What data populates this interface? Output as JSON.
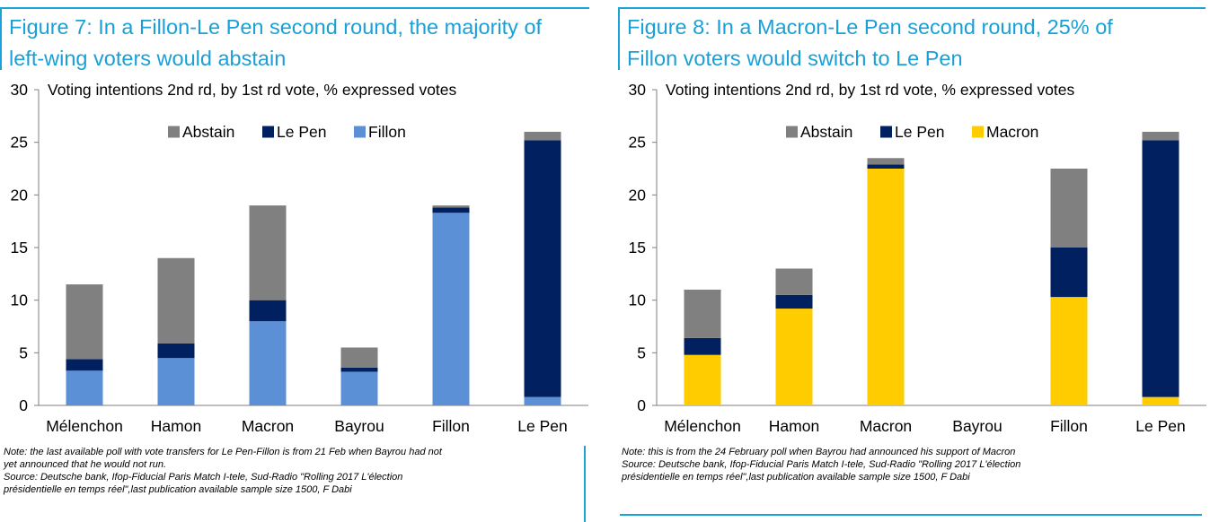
{
  "colors": {
    "title": "#1a9fd6",
    "frame": "#1aa3d9",
    "abstain": "#808080",
    "le_pen": "#002060",
    "fillon": "#5b8fd6",
    "macron": "#ffcc00",
    "axis": "#7f7f7f"
  },
  "panels": [
    {
      "title_line1": "Figure 7: In a Fillon-Le Pen second round, the majority of",
      "title_line2": "left-wing voters would abstain",
      "note_lines": [
        "Note: the last available poll with vote transfers for Le Pen-Fillon is from 21 Feb when Bayrou had not",
        "yet announced that he would not run.",
        "Source: Deutsche bank, Ifop-Fiducial Paris Match I-tele, Sud-Radio \"Rolling 2017 L'élection",
        "présidentielle en temps réel\",last publication available sample size 1500, F Dabi"
      ]
    },
    {
      "title_line1": "Figure 8: In a Macron-Le Pen second round, 25% of",
      "title_line2": "Fillon voters would switch to Le Pen",
      "note_lines": [
        "Note: this is from the 24 February poll when Bayrou had announced his support of Macron",
        "Source: Deutsche bank, Ifop-Fiducial Paris Match I-tele, Sud-Radio \"Rolling 2017 L'élection",
        "présidentielle en temps réel\",last publication available sample size 1500, F Dabi"
      ]
    }
  ],
  "chart_data": [
    {
      "type": "bar",
      "stacked": true,
      "title": "Figure 7: In a Fillon-Le Pen second round, the majority of left-wing voters would abstain",
      "subtitle": "Voting intentions 2nd rd, by 1st rd vote, % expressed votes",
      "categories": [
        "Mélenchon",
        "Hamon",
        "Macron",
        "Bayrou",
        "Fillon",
        "Le Pen"
      ],
      "series": [
        {
          "name": "Fillon",
          "key": "fillon",
          "values": [
            3.3,
            4.5,
            8.0,
            3.2,
            18.3,
            0.8
          ]
        },
        {
          "name": "Le Pen",
          "key": "le_pen",
          "values": [
            1.1,
            1.4,
            2.0,
            0.4,
            0.5,
            24.4
          ]
        },
        {
          "name": "Abstain",
          "key": "abstain",
          "values": [
            7.1,
            8.1,
            9.0,
            1.9,
            0.2,
            0.8
          ]
        }
      ],
      "legend": [
        "Abstain",
        "Le Pen",
        "Fillon"
      ],
      "legend_keys": [
        "abstain",
        "le_pen",
        "fillon"
      ],
      "ylim": [
        0,
        30
      ],
      "yticks": [
        0,
        5,
        10,
        15,
        20,
        25,
        30
      ],
      "xlabel": "",
      "ylabel": "",
      "grid": false,
      "legend_position": "top-center"
    },
    {
      "type": "bar",
      "stacked": true,
      "title": "Figure 8: In a Macron-Le Pen second round, 25% of Fillon voters would switch to Le Pen",
      "subtitle": "Voting intentions 2nd rd, by 1st rd vote, % expressed votes",
      "categories": [
        "Mélenchon",
        "Hamon",
        "Macron",
        "Bayrou",
        "Fillon",
        "Le Pen"
      ],
      "series": [
        {
          "name": "Macron",
          "key": "macron",
          "values": [
            4.8,
            9.2,
            22.5,
            0,
            10.3,
            0.8
          ]
        },
        {
          "name": "Le Pen",
          "key": "le_pen",
          "values": [
            1.6,
            1.3,
            0.4,
            0,
            4.7,
            24.4
          ]
        },
        {
          "name": "Abstain",
          "key": "abstain",
          "values": [
            4.6,
            2.5,
            0.6,
            0,
            7.5,
            0.8
          ]
        }
      ],
      "legend": [
        "Abstain",
        "Le Pen",
        "Macron"
      ],
      "legend_keys": [
        "abstain",
        "le_pen",
        "macron"
      ],
      "ylim": [
        0,
        30
      ],
      "yticks": [
        0,
        5,
        10,
        15,
        20,
        25,
        30
      ],
      "xlabel": "",
      "ylabel": "",
      "grid": false,
      "legend_position": "top-center"
    }
  ]
}
